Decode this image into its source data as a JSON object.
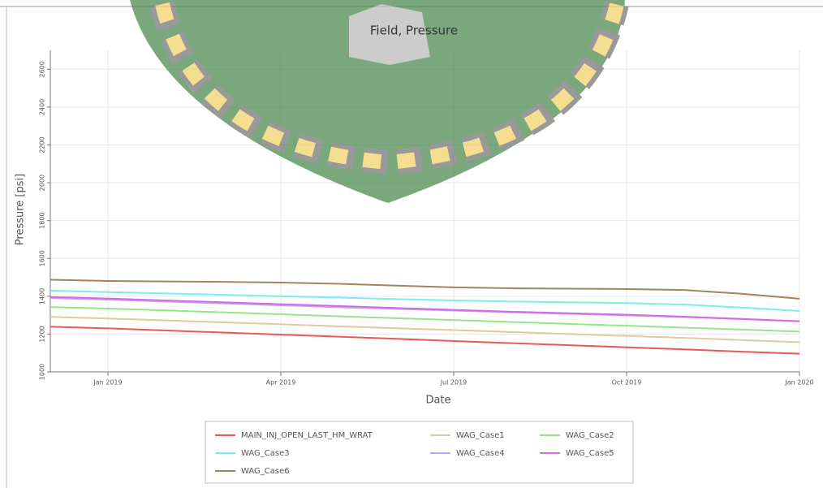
{
  "chart_data": {
    "type": "line",
    "title": "Field, Pressure",
    "x_label": "Date",
    "y_label": "Pressure [psi]",
    "x": [
      "2018-12",
      "2019-01",
      "2019-02",
      "2019-03",
      "2019-04",
      "2019-05",
      "2019-06",
      "2019-07",
      "2019-08",
      "2019-09",
      "2019-10",
      "2019-11",
      "2019-12",
      "2020-01"
    ],
    "xlim": [
      "2018-12",
      "2020-01"
    ],
    "xticks": [
      {
        "value": "2019-01",
        "label": "Jan 2019"
      },
      {
        "value": "2019-04",
        "label": "Apr 2019"
      },
      {
        "value": "2019-07",
        "label": "Jul 2019"
      },
      {
        "value": "2019-10",
        "label": "Oct 2019"
      },
      {
        "value": "2020-01",
        "label": "Jan 2020"
      }
    ],
    "ylim": [
      1000,
      2700
    ],
    "yticks": [
      1000,
      1200,
      1400,
      1600,
      1800,
      2000,
      2200,
      2400,
      2600
    ],
    "grid": true,
    "series": [
      {
        "name": "MAIN_INJ_OPEN_LAST_HM_WRAT",
        "color": "#e8585a",
        "values": [
          1239,
          1230,
          1219,
          1208,
          1197,
          1186,
          1175,
          1163,
          1152,
          1141,
          1130,
          1119,
          1107,
          1096
        ]
      },
      {
        "name": "WAG_Case1",
        "color": "#e3c9a0",
        "values": [
          1291,
          1282,
          1272,
          1262,
          1252,
          1241,
          1231,
          1221,
          1211,
          1200,
          1190,
          1180,
          1168,
          1157
        ]
      },
      {
        "name": "WAG_Case2",
        "color": "#8fe88a",
        "values": [
          1343,
          1335,
          1325,
          1315,
          1305,
          1294,
          1284,
          1274,
          1264,
          1254,
          1244,
          1234,
          1224,
          1213
        ]
      },
      {
        "name": "WAG_Case3",
        "color": "#7fecef",
        "values": [
          1430,
          1422,
          1415,
          1408,
          1400,
          1393,
          1385,
          1378,
          1372,
          1368,
          1364,
          1356,
          1340,
          1322
        ]
      },
      {
        "name": "WAG_Case4",
        "color": "#b9a6ee",
        "values": [
          1390,
          1382,
          1372,
          1362,
          1352,
          1342,
          1333,
          1324,
          1315,
          1307,
          1299,
          1290,
          1279,
          1268
        ]
      },
      {
        "name": "WAG_Case5",
        "color": "#d66ae6",
        "values": [
          1396,
          1388,
          1378,
          1368,
          1358,
          1348,
          1338,
          1328,
          1318,
          1310,
          1302,
          1292,
          1280,
          1268
        ]
      },
      {
        "name": "WAG_Case6",
        "color": "#a6825f",
        "values": [
          1487,
          1481,
          1478,
          1476,
          1472,
          1466,
          1456,
          1447,
          1442,
          1440,
          1438,
          1433,
          1413,
          1387
        ]
      }
    ]
  }
}
